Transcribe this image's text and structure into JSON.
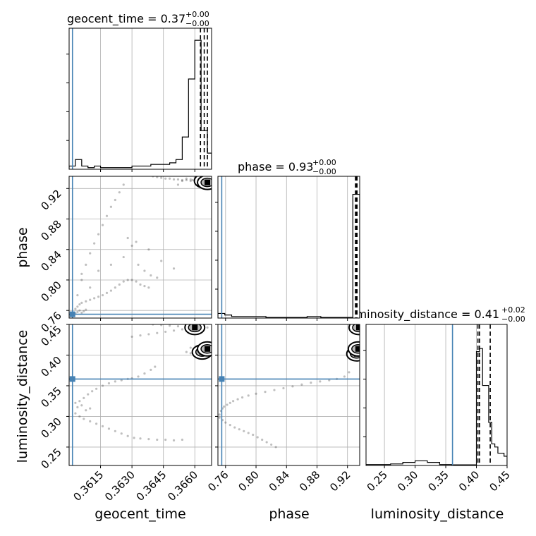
{
  "chart_data": {
    "type": "scatter",
    "kind": "corner-plot",
    "parameters": [
      "geocent_time",
      "phase",
      "luminosity_distance"
    ],
    "truth_color": "#4682b4",
    "truths": {
      "geocent_time": 0.36016,
      "phase": 0.755,
      "luminosity_distance": 0.361
    },
    "ranges": {
      "geocent_time": [
        0.36,
        0.3668
      ],
      "phase": [
        0.75,
        0.936
      ],
      "luminosity_distance": [
        0.22,
        0.45
      ]
    },
    "ticks": {
      "geocent_time": {
        "values": [
          0.3615,
          0.363,
          0.3645,
          0.366
        ],
        "labels": [
          "0.3615",
          "0.3630",
          "0.3645",
          "0.3660"
        ]
      },
      "phase": {
        "values": [
          0.76,
          0.8,
          0.84,
          0.88,
          0.92
        ],
        "labels": [
          "0.76",
          "0.80",
          "0.84",
          "0.88",
          "0.92"
        ]
      },
      "luminosity_distance": {
        "values": [
          0.25,
          0.3,
          0.35,
          0.4,
          0.45
        ],
        "labels": [
          "0.25",
          "0.30",
          "0.35",
          "0.40",
          "0.45"
        ]
      }
    },
    "titles": {
      "geocent_time": {
        "text": "geocent_time = 0.37",
        "plus": "+0.00",
        "minus": "−0.00"
      },
      "phase": {
        "text": "phase = 0.93",
        "plus": "+0.00",
        "minus": "−0.00"
      },
      "luminosity_distance": {
        "text": "luminosity_distance = 0.41",
        "plus": "+0.02",
        "minus": "−0.00"
      }
    },
    "axis_labels": {
      "geocent_time": "geocent_time",
      "phase": "phase",
      "luminosity_distance": "luminosity_distance"
    },
    "quantiles": {
      "geocent_time": [
        0.36627,
        0.36645,
        0.3666
      ],
      "phase": [
        0.9305,
        0.9315,
        0.9325
      ],
      "luminosity_distance": [
        0.4025,
        0.405,
        0.4225
      ]
    },
    "histograms": {
      "geocent_time": {
        "edges": [
          0.36,
          0.3603,
          0.3606,
          0.3609,
          0.3612,
          0.3615,
          0.3618,
          0.3621,
          0.3624,
          0.3627,
          0.363,
          0.3633,
          0.3636,
          0.3639,
          0.3642,
          0.3645,
          0.3648,
          0.3651,
          0.3654,
          0.3657,
          0.366,
          0.3663,
          0.3666,
          0.3668
        ],
        "counts": [
          1,
          3,
          1,
          0.5,
          1,
          0.5,
          0.5,
          0.5,
          0.5,
          0.5,
          1,
          1,
          1,
          1.5,
          1.5,
          1.5,
          2,
          3,
          10,
          28,
          40,
          12,
          5
        ],
        "max": 42
      },
      "phase": {
        "edges": [
          0.75,
          0.759,
          0.768,
          0.777,
          0.786,
          0.795,
          0.804,
          0.813,
          0.822,
          0.831,
          0.84,
          0.849,
          0.858,
          0.867,
          0.876,
          0.885,
          0.894,
          0.903,
          0.912,
          0.921,
          0.927,
          0.936
        ],
        "counts": [
          1.5,
          1,
          0.5,
          0.5,
          0.5,
          0.5,
          0.5,
          0.2,
          0.2,
          0.2,
          0.2,
          0.2,
          0.2,
          0.5,
          0.5,
          0.2,
          0.2,
          0.2,
          0.2,
          0.2,
          40
        ],
        "max": 44
      },
      "luminosity_distance": {
        "edges": [
          0.22,
          0.26,
          0.28,
          0.3,
          0.32,
          0.34,
          0.36,
          0.38,
          0.395,
          0.4,
          0.405,
          0.41,
          0.415,
          0.42,
          0.425,
          0.43,
          0.435,
          0.44,
          0.445,
          0.45
        ],
        "counts": [
          0.3,
          0.5,
          1,
          1.5,
          1,
          0.3,
          0.2,
          0.2,
          0.2,
          37,
          38,
          26,
          26,
          14,
          7,
          6,
          4,
          4,
          3
        ],
        "max": 44
      }
    },
    "scatter": {
      "phase_vs_geocent_time": {
        "x": [
          0.3603,
          0.3604,
          0.3605,
          0.3606,
          0.3608,
          0.361,
          0.3612,
          0.3614,
          0.3616,
          0.3618,
          0.362,
          0.3622,
          0.3624,
          0.3626,
          0.3628,
          0.363,
          0.3632,
          0.3634,
          0.3636,
          0.3638,
          0.364,
          0.3642,
          0.3644,
          0.3646,
          0.3648,
          0.365,
          0.3652,
          0.3654,
          0.3656,
          0.3658,
          0.366,
          0.3662,
          0.3664,
          0.3666,
          0.3604,
          0.3606,
          0.3608,
          0.361,
          0.3612,
          0.3614,
          0.3616,
          0.3618,
          0.362,
          0.3622,
          0.3624,
          0.3626,
          0.3628,
          0.363,
          0.3633,
          0.3636,
          0.3639,
          0.3642,
          0.3603,
          0.3604,
          0.3605,
          0.3606,
          0.3607,
          0.3608,
          0.3606,
          0.361,
          0.3614,
          0.362,
          0.3626,
          0.3632,
          0.3638,
          0.3644,
          0.365,
          0.3652,
          0.3654,
          0.3656,
          0.3658,
          0.366,
          0.3662,
          0.3664,
          0.3666,
          0.3659,
          0.3661,
          0.3663,
          0.3665
        ],
        "y": [
          0.762,
          0.765,
          0.768,
          0.77,
          0.772,
          0.774,
          0.776,
          0.778,
          0.78,
          0.783,
          0.786,
          0.79,
          0.794,
          0.798,
          0.8,
          0.8,
          0.798,
          0.794,
          0.792,
          0.79,
          0.936,
          0.935,
          0.934,
          0.933,
          0.933,
          0.932,
          0.932,
          0.931,
          0.931,
          0.93,
          0.93,
          0.929,
          0.928,
          0.928,
          0.78,
          0.8,
          0.82,
          0.835,
          0.848,
          0.86,
          0.872,
          0.884,
          0.896,
          0.905,
          0.915,
          0.925,
          0.855,
          0.845,
          0.82,
          0.812,
          0.806,
          0.803,
          0.756,
          0.758,
          0.76,
          0.757,
          0.759,
          0.761,
          0.808,
          0.79,
          0.812,
          0.82,
          0.83,
          0.85,
          0.84,
          0.825,
          0.815,
          0.925,
          0.93,
          0.933,
          0.932,
          0.934,
          0.927,
          0.929,
          0.926,
          0.931,
          0.928,
          0.93,
          0.927
        ]
      },
      "luminosity_distance_vs_geocent_time": {
        "x": [
          0.3603,
          0.3605,
          0.3607,
          0.3609,
          0.3611,
          0.3613,
          0.3616,
          0.3619,
          0.3622,
          0.3625,
          0.3628,
          0.363,
          0.3633,
          0.3636,
          0.3639,
          0.3641,
          0.3603,
          0.3605,
          0.3607,
          0.361,
          0.3613,
          0.3616,
          0.3619,
          0.3622,
          0.3625,
          0.3628,
          0.3631,
          0.3634,
          0.3638,
          0.3642,
          0.3646,
          0.365,
          0.3654,
          0.364,
          0.3644,
          0.3648,
          0.3652,
          0.3656,
          0.366,
          0.3664,
          0.3666,
          0.363,
          0.3634,
          0.3638,
          0.3642,
          0.3646,
          0.365,
          0.3654,
          0.3658,
          0.3662,
          0.3666,
          0.3656,
          0.3658,
          0.366,
          0.3662,
          0.3664,
          0.3604,
          0.3606,
          0.3608,
          0.361
        ],
        "y": [
          0.322,
          0.325,
          0.33,
          0.336,
          0.341,
          0.345,
          0.35,
          0.354,
          0.357,
          0.359,
          0.361,
          0.362,
          0.365,
          0.37,
          0.376,
          0.381,
          0.305,
          0.3,
          0.296,
          0.292,
          0.288,
          0.284,
          0.28,
          0.276,
          0.272,
          0.268,
          0.265,
          0.264,
          0.263,
          0.262,
          0.262,
          0.261,
          0.262,
          0.45,
          0.449,
          0.448,
          0.447,
          0.446,
          0.446,
          0.445,
          0.445,
          0.43,
          0.432,
          0.434,
          0.436,
          0.438,
          0.44,
          0.442,
          0.412,
          0.41,
          0.408,
          0.405,
          0.403,
          0.401,
          0.399,
          0.397,
          0.315,
          0.318,
          0.31,
          0.313
        ]
      },
      "luminosity_distance_vs_phase": {
        "x": [
          0.752,
          0.754,
          0.756,
          0.758,
          0.762,
          0.766,
          0.77,
          0.776,
          0.782,
          0.79,
          0.8,
          0.812,
          0.824,
          0.836,
          0.848,
          0.86,
          0.872,
          0.884,
          0.896,
          0.906,
          0.916,
          0.922,
          0.752,
          0.756,
          0.76,
          0.766,
          0.772,
          0.778,
          0.784,
          0.79,
          0.796,
          0.802,
          0.808,
          0.814,
          0.82,
          0.826,
          0.93,
          0.931,
          0.932,
          0.933,
          0.934,
          0.935,
          0.929,
          0.931,
          0.933,
          0.935,
          0.928,
          0.93,
          0.932,
          0.934,
          0.936
        ],
        "y": [
          0.303,
          0.309,
          0.313,
          0.316,
          0.319,
          0.322,
          0.325,
          0.328,
          0.331,
          0.334,
          0.337,
          0.34,
          0.343,
          0.346,
          0.349,
          0.352,
          0.355,
          0.357,
          0.359,
          0.361,
          0.365,
          0.372,
          0.298,
          0.294,
          0.29,
          0.286,
          0.282,
          0.279,
          0.276,
          0.273,
          0.27,
          0.266,
          0.262,
          0.258,
          0.254,
          0.25,
          0.448,
          0.446,
          0.444,
          0.442,
          0.44,
          0.438,
          0.42,
          0.418,
          0.416,
          0.414,
          0.41,
          0.408,
          0.406,
          0.404,
          0.402
        ]
      }
    },
    "density_blobs": {
      "phase_vs_geocent_time": [
        [
          0.36645,
          0.93
        ],
        [
          0.3666,
          0.928
        ]
      ],
      "luminosity_distance_vs_geocent_time": [
        [
          0.36635,
          0.405
        ],
        [
          0.3666,
          0.41
        ],
        [
          0.366,
          0.445
        ]
      ],
      "luminosity_distance_vs_phase": [
        [
          0.932,
          0.402
        ],
        [
          0.934,
          0.41
        ],
        [
          0.935,
          0.445
        ]
      ]
    }
  }
}
